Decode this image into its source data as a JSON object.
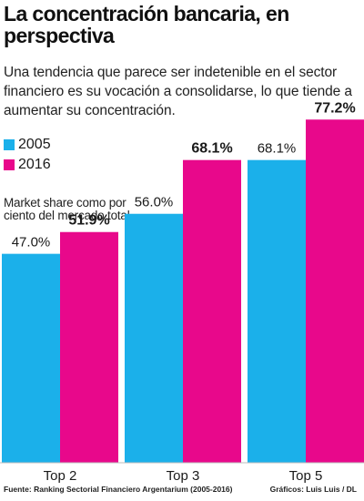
{
  "header": {
    "title": "La concentración bancaria, en perspectiva",
    "subtitle": "Una tendencia que parece ser indetenible en el sector financiero es su vocación a consolidarse, lo que tiende a aumentar su concentración."
  },
  "note": "Market share como por ciento del mercado total",
  "footer": {
    "source_label": "Fuente:",
    "source": "Ranking Sectorial Financiero Argentarium (2005-2016)",
    "credit": "Gráficos: Luis Luis / DL"
  },
  "colors": {
    "s2005": "#1bb0ea",
    "s2016": "#e8088b"
  },
  "chart_data": {
    "type": "bar",
    "categories": [
      "Top 2",
      "Top 3",
      "Top 5"
    ],
    "series": [
      {
        "name": "2005",
        "values": [
          47.0,
          56.0,
          68.1
        ],
        "labels": [
          "47.0%",
          "56.0%",
          "68.1%"
        ]
      },
      {
        "name": "2016",
        "values": [
          51.9,
          68.1,
          77.2
        ],
        "labels": [
          "51.9%",
          "68.1%",
          "77.2%"
        ]
      }
    ],
    "title": "La concentración bancaria, en perspectiva",
    "ylabel": "Market share como por ciento del mercado total",
    "ylim": [
      0,
      100
    ],
    "grid": false,
    "legend": "top-left"
  }
}
